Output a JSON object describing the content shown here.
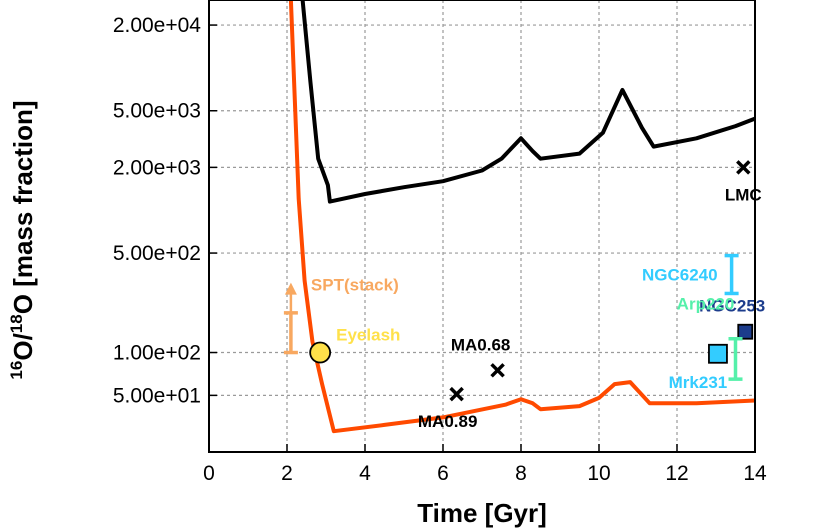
{
  "chart_data": {
    "type": "scatter",
    "xlabel": "Time [Gyr]",
    "ylabel": {
      "pre1": "16",
      "mid1": "O/",
      "pre2": "18",
      "rest": "O [mass fraction]"
    },
    "xlim": [
      0,
      14
    ],
    "x_ticks": [
      "0",
      "2",
      "4",
      "6",
      "8",
      "10",
      "12",
      "14"
    ],
    "y_scale": "log",
    "ylim": [
      20,
      30000
    ],
    "y_ticks": [
      {
        "value": 20000,
        "label": "2.00e+04"
      },
      {
        "value": 5000,
        "label": "5.00e+03"
      },
      {
        "value": 2000,
        "label": "2.00e+03"
      },
      {
        "value": 500,
        "label": "5.00e+02"
      },
      {
        "value": 100,
        "label": "1.00e+02"
      },
      {
        "value": 50,
        "label": "5.00e+01"
      }
    ],
    "grid": true,
    "series": [
      {
        "color": "#000000",
        "points": [
          [
            2.4,
            30000
          ],
          [
            2.6,
            8000
          ],
          [
            2.8,
            2300
          ],
          [
            3.05,
            1500
          ],
          [
            3.1,
            1150
          ],
          [
            4,
            1300
          ],
          [
            5,
            1450
          ],
          [
            6,
            1600
          ],
          [
            7,
            1900
          ],
          [
            7.5,
            2300
          ],
          [
            8.0,
            3200
          ],
          [
            8.3,
            2600
          ],
          [
            8.5,
            2300
          ],
          [
            9.5,
            2500
          ],
          [
            10.1,
            3500
          ],
          [
            10.6,
            7000
          ],
          [
            11.1,
            3800
          ],
          [
            11.4,
            2800
          ],
          [
            12.5,
            3200
          ],
          [
            13.5,
            3900
          ],
          [
            14.0,
            4400
          ]
        ]
      },
      {
        "color": "#ff4a00",
        "points": [
          [
            2.1,
            30000
          ],
          [
            2.2,
            6000
          ],
          [
            2.3,
            1200
          ],
          [
            2.45,
            320
          ],
          [
            2.65,
            120
          ],
          [
            2.9,
            60
          ],
          [
            3.2,
            28
          ],
          [
            4.5,
            31
          ],
          [
            6,
            35
          ],
          [
            7.6,
            43
          ],
          [
            8.0,
            47
          ],
          [
            8.3,
            44
          ],
          [
            8.5,
            40
          ],
          [
            9.5,
            42
          ],
          [
            10.0,
            48
          ],
          [
            10.4,
            60
          ],
          [
            10.8,
            62
          ],
          [
            11.3,
            44
          ],
          [
            12.5,
            44
          ],
          [
            14.0,
            46
          ]
        ]
      }
    ],
    "annotations": [
      {
        "label": "LMC",
        "x": 13.7,
        "y": 2000,
        "marker": "x",
        "color": "#000000"
      },
      {
        "label": "MA0.68",
        "x": 7.4,
        "y": 75,
        "marker": "x",
        "color": "#000000"
      },
      {
        "label": "MA0.89",
        "x": 6.35,
        "y": 51,
        "marker": "x",
        "color": "#000000"
      },
      {
        "label": "NGC6240",
        "x": 13.4,
        "ylow": 260,
        "yhigh": 480,
        "marker": "errorbar",
        "color": "#33ccff"
      },
      {
        "label": "NGC253",
        "x": 13.75,
        "y": 140,
        "marker": "square",
        "color": "#1c3c8c"
      },
      {
        "label": "Arp220",
        "x": 13.5,
        "ylow": 65,
        "yhigh": 125,
        "marker": "errorbar",
        "color": "#55f0aa"
      },
      {
        "label": "Mrk231",
        "x": 13.05,
        "y": 98,
        "marker": "square",
        "color": "#33ccff"
      },
      {
        "label": "Eyelash",
        "x": 2.85,
        "y": 100,
        "marker": "circle",
        "color": "#ffe14a"
      },
      {
        "label": "SPT(stack)",
        "x": 2.1,
        "ylow": 100,
        "yhigh": 190,
        "arrow_to": 300,
        "marker": "lower-limit",
        "color": "#f8a860"
      }
    ]
  }
}
